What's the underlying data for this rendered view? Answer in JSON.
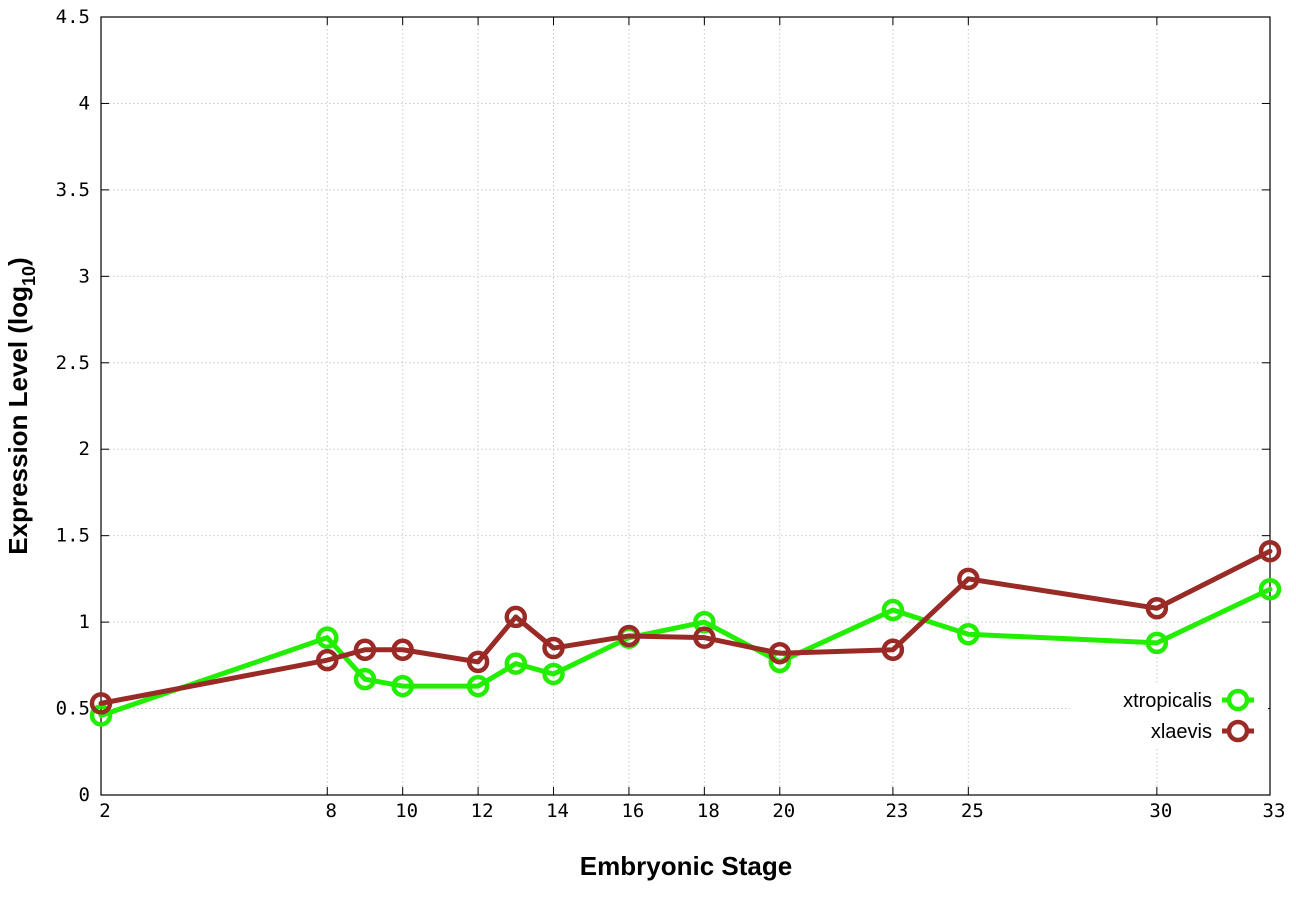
{
  "chart_data": {
    "type": "line",
    "xlabel": "Embryonic Stage",
    "ylabel_main": "Expression Level (log",
    "ylabel_sub": "10",
    "ylabel_close": ")",
    "xlim": [
      2,
      33
    ],
    "ylim": [
      0,
      4.5
    ],
    "x_ticks": [
      2,
      8,
      10,
      12,
      14,
      16,
      18,
      20,
      23,
      25,
      30,
      33
    ],
    "x_tick_labels": [
      "2",
      "8",
      "10",
      "12",
      "14",
      "16",
      "18",
      "20",
      "23",
      "25",
      "30",
      "33"
    ],
    "y_ticks": [
      0,
      0.5,
      1,
      1.5,
      2,
      2.5,
      3,
      3.5,
      4,
      4.5
    ],
    "y_tick_labels": [
      "0",
      "0.5",
      "1",
      "1.5",
      "2",
      "2.5",
      "3",
      "3.5",
      "4",
      "4.5"
    ],
    "grid": true,
    "legend_position": "bottom-right",
    "series": [
      {
        "name": "xtropicalis",
        "color": "#22ee00",
        "points": [
          [
            2,
            0.46
          ],
          [
            8,
            0.91
          ],
          [
            9,
            0.67
          ],
          [
            10,
            0.63
          ],
          [
            12,
            0.63
          ],
          [
            13,
            0.76
          ],
          [
            14,
            0.7
          ],
          [
            16,
            0.91
          ],
          [
            18,
            1.0
          ],
          [
            20,
            0.77
          ],
          [
            23,
            1.07
          ],
          [
            25,
            0.93
          ],
          [
            30,
            0.88
          ],
          [
            33,
            1.19
          ]
        ]
      },
      {
        "name": "xlaevis",
        "color": "#9a2a26",
        "points": [
          [
            2,
            0.53
          ],
          [
            8,
            0.78
          ],
          [
            9,
            0.84
          ],
          [
            10,
            0.84
          ],
          [
            12,
            0.77
          ],
          [
            13,
            1.03
          ],
          [
            14,
            0.85
          ],
          [
            16,
            0.92
          ],
          [
            18,
            0.91
          ],
          [
            20,
            0.82
          ],
          [
            23,
            0.84
          ],
          [
            25,
            1.25
          ],
          [
            30,
            1.08
          ],
          [
            33,
            1.41
          ]
        ]
      }
    ]
  }
}
